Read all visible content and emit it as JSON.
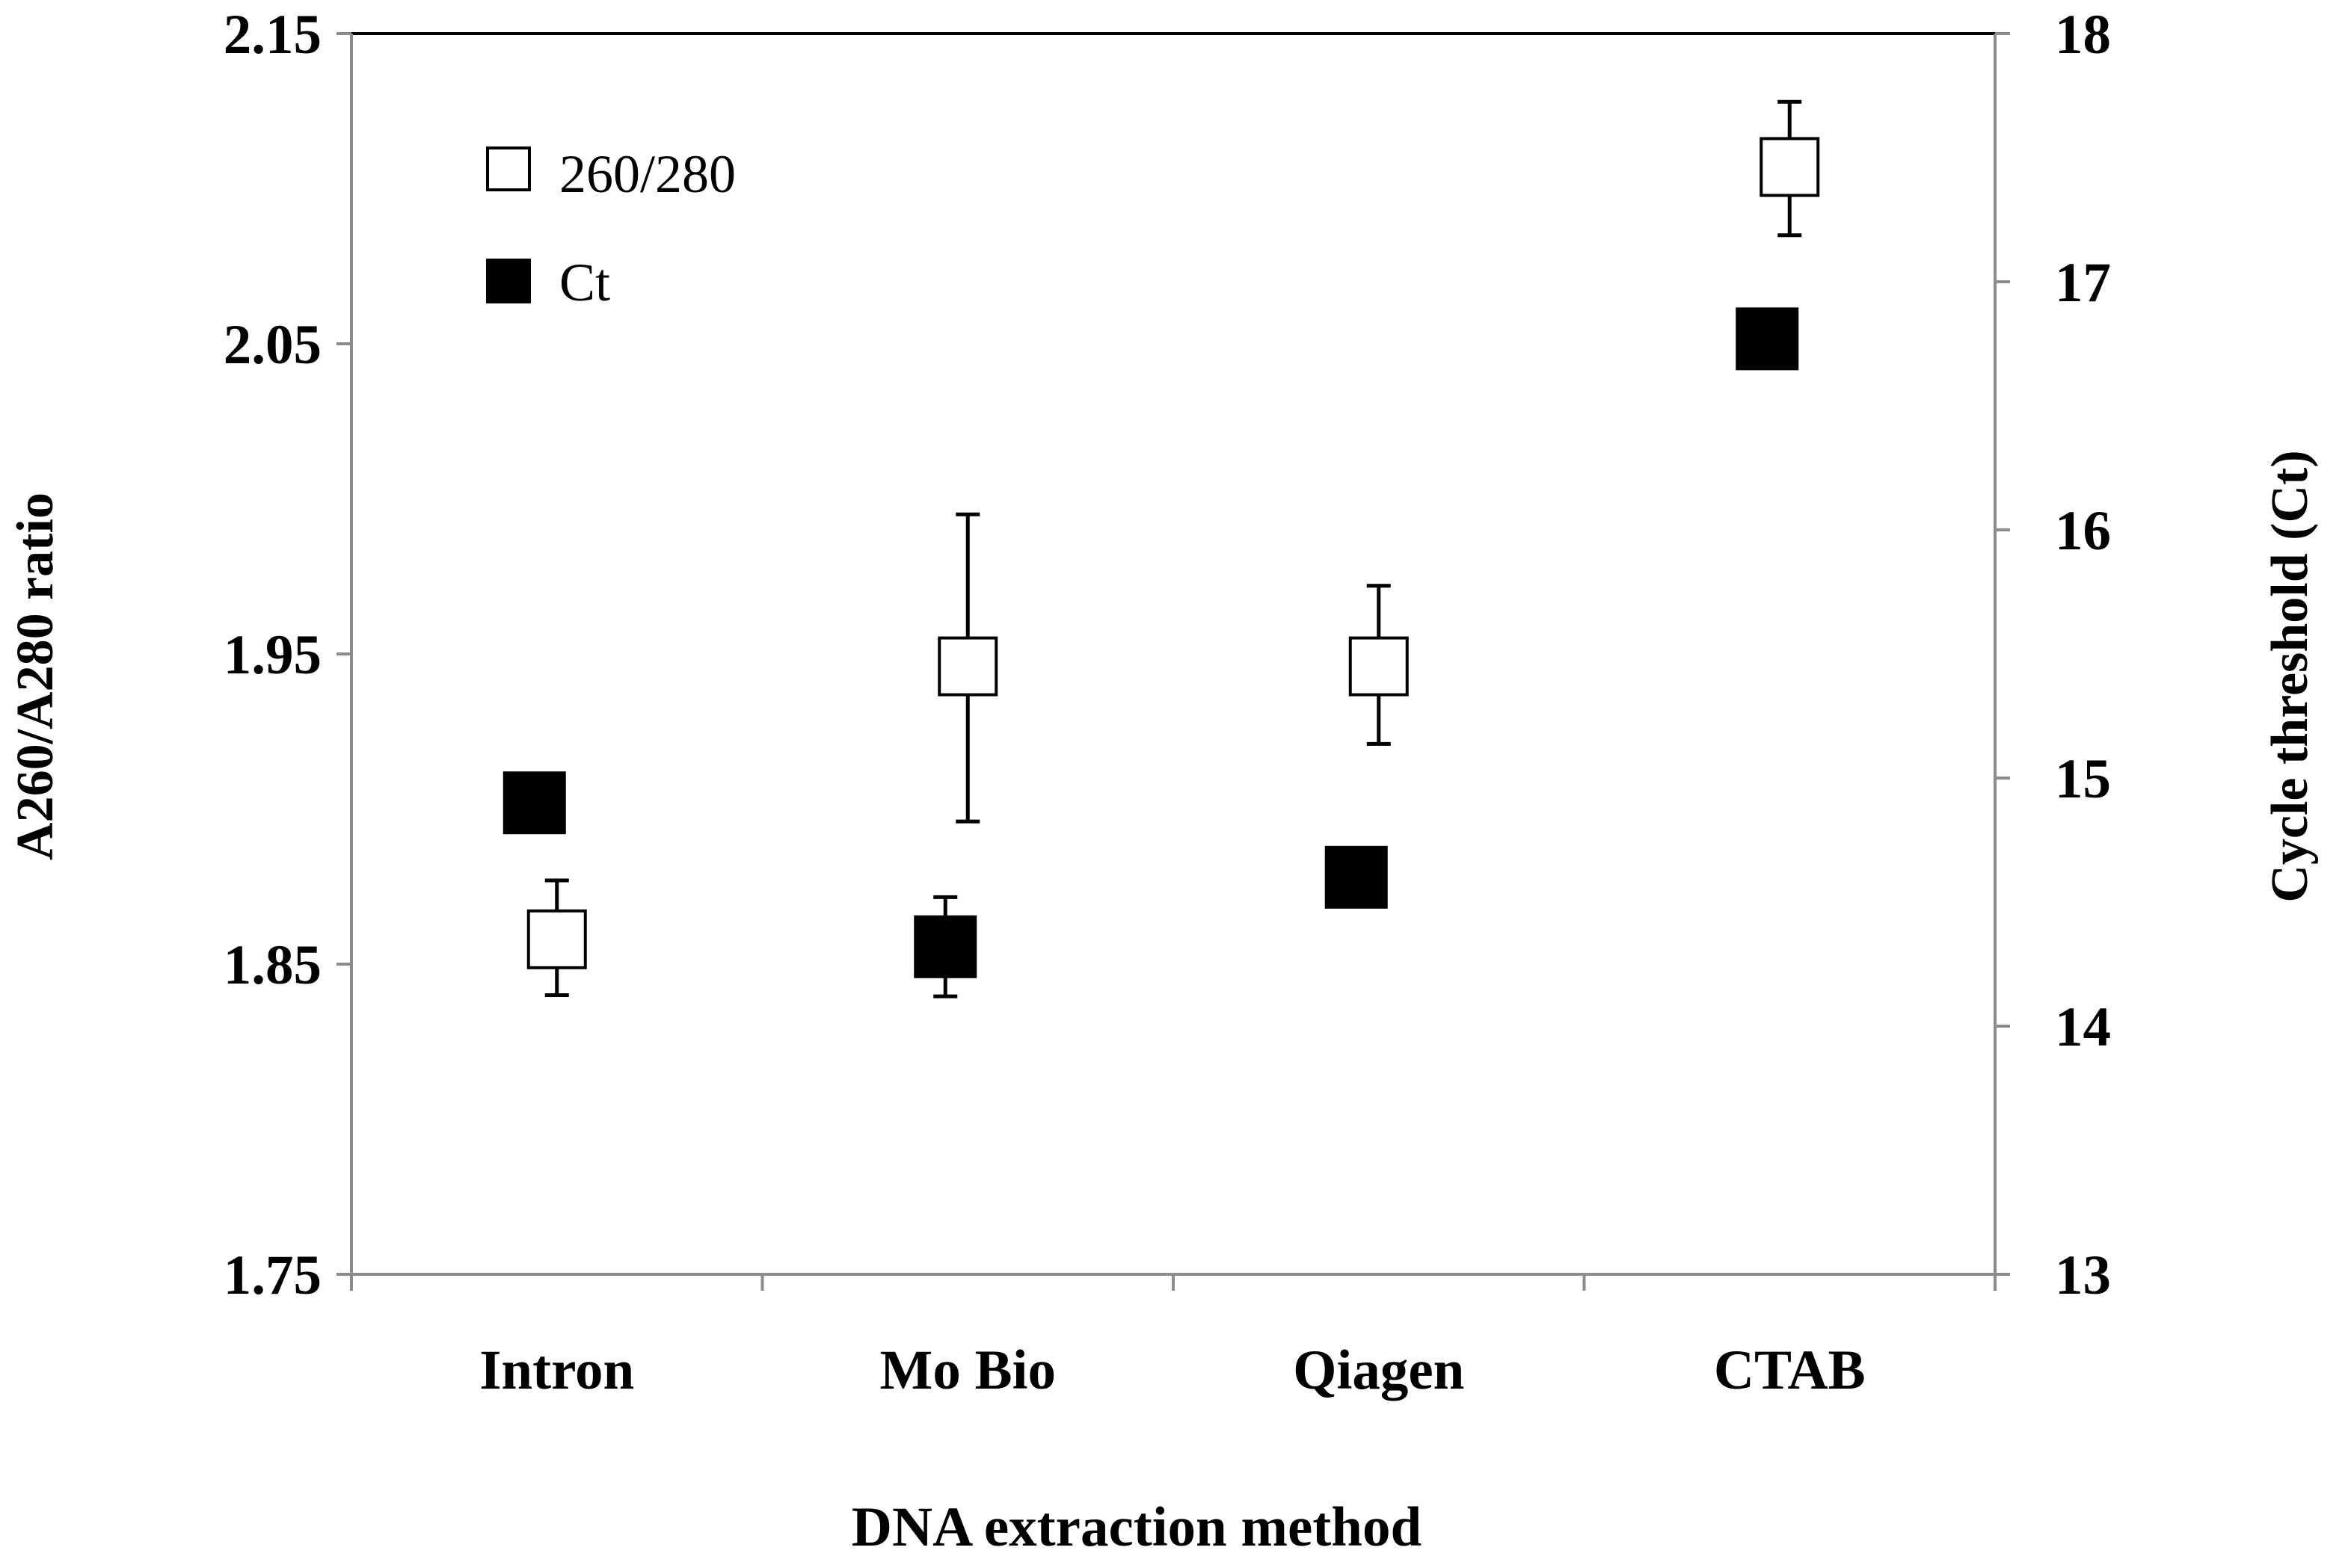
{
  "chart_data": {
    "type": "scatter",
    "categories": [
      "Intron",
      "Mo Bio",
      "Qiagen",
      "CTAB"
    ],
    "xlabel": "DNA extraction method",
    "ylabel_left": "A260/A280 ratio",
    "ylabel_right": "Cycle threshold (Ct)",
    "ylim_left": [
      1.75,
      2.15
    ],
    "ylim_right": [
      13,
      18
    ],
    "yticks_left": [
      "1.75",
      "1.85",
      "1.95",
      "2.05",
      "2.15"
    ],
    "yticks_right": [
      "13",
      "14",
      "15",
      "16",
      "17",
      "18"
    ],
    "grid": false,
    "legend_position": "top-left",
    "series": [
      {
        "name": "260/280",
        "axis": "left",
        "marker": "open-square",
        "color": "#000000",
        "values": [
          1.858,
          1.946,
          1.946,
          2.107
        ],
        "error_low": [
          1.84,
          1.896,
          1.921,
          2.085
        ],
        "error_high": [
          1.877,
          1.995,
          1.972,
          2.128
        ]
      },
      {
        "name": "Ct",
        "axis": "right",
        "marker": "filled-square",
        "color": "#000000",
        "values": [
          14.9,
          14.32,
          14.6,
          16.77
        ],
        "error_low": [
          null,
          14.12,
          null,
          null
        ],
        "error_high": [
          null,
          14.52,
          null,
          null
        ]
      }
    ]
  }
}
